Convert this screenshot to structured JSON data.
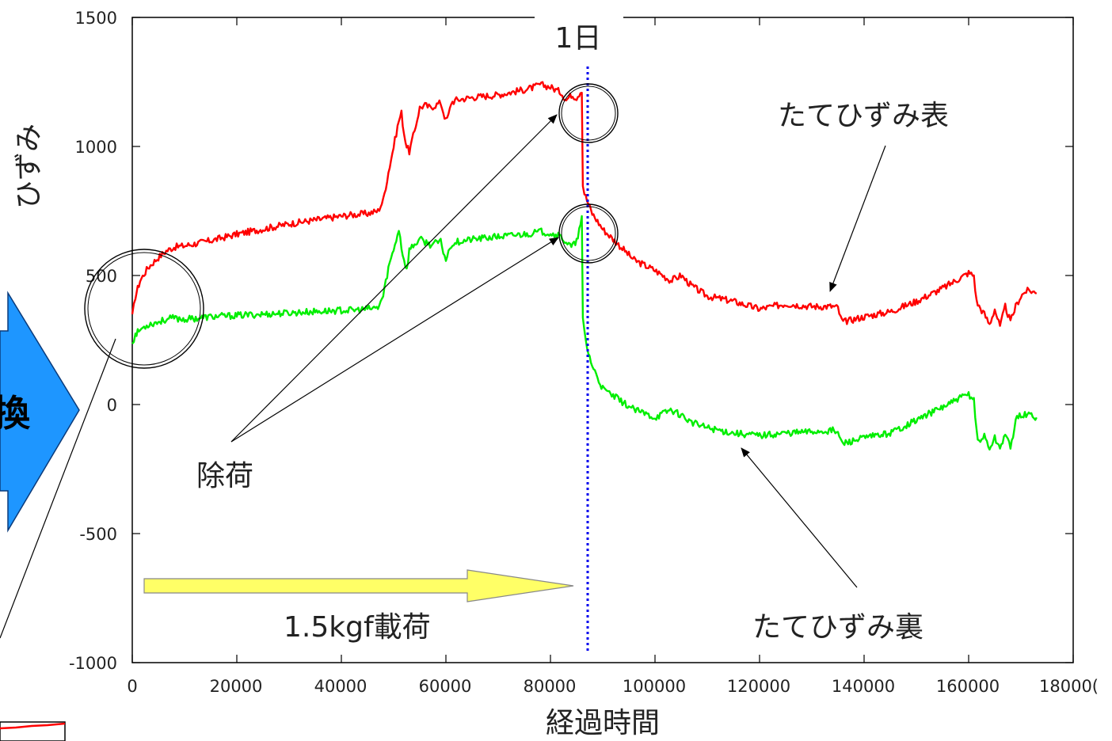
{
  "chart_data": {
    "type": "line",
    "xlabel": "経過時間",
    "ylabel": "ひずみ",
    "xlim": [
      0,
      180000
    ],
    "ylim": [
      -1000,
      1500
    ],
    "x_ticks": [
      "0",
      "20000",
      "40000",
      "60000",
      "80000",
      "100000",
      "120000",
      "140000",
      "160000",
      "18000("
    ],
    "y_ticks": [
      "1500",
      "1000",
      "500",
      "0",
      "-500",
      "-1000"
    ],
    "grid": false,
    "colors": {
      "surface": "#ff0000",
      "back": "#00ee00",
      "day_line": "#0000ee",
      "load_arrow": "#ffff66",
      "side_arrow": "#1e96ff"
    },
    "series": [
      {
        "name": "たてひずみ表",
        "x": [
          0,
          600,
          1500,
          3000,
          5000,
          6500,
          8000,
          10000,
          15000,
          20000,
          25000,
          30000,
          35000,
          40000,
          42000,
          45000,
          47000,
          48000,
          49000,
          50000,
          51000,
          51500,
          52000,
          52500,
          53000,
          54000,
          55000,
          56000,
          57000,
          58000,
          59000,
          60000,
          60500,
          61000,
          62000,
          65000,
          70000,
          75000,
          77000,
          78000,
          80000,
          82000,
          83000,
          84000,
          85000,
          86000,
          86200,
          86500,
          87000,
          88000,
          90000,
          93000,
          96000,
          100000,
          103000,
          105000,
          107000,
          110000,
          115000,
          120000,
          125000,
          130000,
          134000,
          135000,
          135500,
          136000,
          140000,
          145000,
          150000,
          155000,
          160000,
          161000,
          161500,
          162000,
          163000,
          164000,
          165000,
          166000,
          167000,
          168000,
          169000,
          170000,
          171000,
          172000,
          173000
        ],
        "values": [
          340,
          420,
          480,
          530,
          570,
          595,
          610,
          615,
          635,
          660,
          680,
          700,
          715,
          730,
          735,
          740,
          750,
          790,
          900,
          1000,
          1100,
          1130,
          1050,
          1000,
          980,
          1060,
          1150,
          1160,
          1150,
          1160,
          1170,
          1100,
          1120,
          1170,
          1180,
          1190,
          1200,
          1220,
          1230,
          1240,
          1230,
          1210,
          1180,
          1200,
          1190,
          1220,
          850,
          820,
          790,
          740,
          680,
          620,
          560,
          520,
          480,
          500,
          460,
          420,
          400,
          370,
          390,
          380,
          380,
          375,
          335,
          320,
          340,
          360,
          400,
          450,
          510,
          500,
          400,
          380,
          350,
          310,
          370,
          300,
          380,
          320,
          380,
          420,
          440,
          440,
          430
        ]
      },
      {
        "name": "たてひずみ裏",
        "x": [
          0,
          600,
          1500,
          3000,
          5000,
          6500,
          8000,
          10000,
          15000,
          20000,
          25000,
          30000,
          35000,
          40000,
          42000,
          45000,
          47000,
          48000,
          49000,
          50000,
          51000,
          51500,
          52000,
          52500,
          53000,
          54000,
          55000,
          56000,
          57000,
          58000,
          59000,
          60000,
          60500,
          61000,
          62000,
          65000,
          70000,
          75000,
          77000,
          78000,
          80000,
          82000,
          83000,
          84000,
          85000,
          86000,
          86200,
          86500,
          87000,
          88000,
          90000,
          93000,
          96000,
          100000,
          103000,
          105000,
          107000,
          110000,
          115000,
          120000,
          125000,
          130000,
          134000,
          135000,
          135500,
          136000,
          140000,
          145000,
          150000,
          155000,
          160000,
          161000,
          161500,
          162000,
          163000,
          164000,
          165000,
          166000,
          167000,
          168000,
          169000,
          170000,
          171000,
          172000,
          173000
        ],
        "values": [
          240,
          270,
          290,
          310,
          320,
          330,
          335,
          330,
          340,
          345,
          350,
          355,
          360,
          365,
          365,
          370,
          375,
          420,
          530,
          600,
          680,
          610,
          560,
          520,
          600,
          620,
          640,
          630,
          620,
          625,
          630,
          560,
          590,
          620,
          630,
          640,
          650,
          660,
          665,
          670,
          665,
          650,
          630,
          610,
          630,
          720,
          330,
          280,
          220,
          150,
          60,
          20,
          -20,
          -50,
          -20,
          -40,
          -70,
          -90,
          -110,
          -120,
          -110,
          -105,
          -100,
          -110,
          -140,
          -150,
          -130,
          -110,
          -60,
          -10,
          40,
          20,
          -100,
          -150,
          -120,
          -170,
          -130,
          -170,
          -110,
          -170,
          -60,
          -40,
          -40,
          -40,
          -50
        ]
      }
    ],
    "annotations": {
      "day_marker": {
        "label": "1日",
        "x": 87000
      },
      "load_label": "1.5kgf載荷",
      "unload_label": "除荷",
      "surface_label": "たてひずみ表",
      "back_label": "たてひずみ裏"
    },
    "side_partial_text": "換"
  }
}
